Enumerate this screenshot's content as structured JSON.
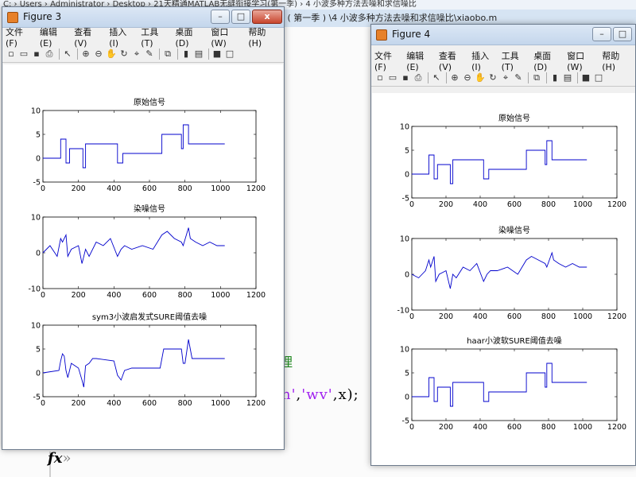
{
  "background": {
    "path_text": "C: › Users › Administrator › Desktop › 21天精通MATLAB无缝衔接学习(第一季) › 4 小波多种方法去噪和求信噪比",
    "editor_title": "手题 ( 第一季 ) \\4 小波多种方法去噪和求信噪比\\xiaobo.m",
    "code_line1": "理",
    "code_line2_a": "n'",
    "code_line2_b": ",",
    "code_line2_c": "'wv'",
    "code_line2_d": ",x);",
    "fx_symbol": "fx",
    "fx_chevron": "»"
  },
  "fig3": {
    "title": "Figure 3",
    "menu": [
      "文件(F)",
      "编辑(E)",
      "查看(V)",
      "插入(I)",
      "工具(T)",
      "桌面(D)",
      "窗口(W)",
      "帮助(H)"
    ]
  },
  "fig4": {
    "title": "Figure 4",
    "menu": [
      "文件(F)",
      "编辑(E)",
      "查看(V)",
      "插入(I)",
      "工具(T)",
      "桌面(D)",
      "窗口(W)",
      "帮助(H)"
    ]
  },
  "window_controls": {
    "minimize": "–",
    "maximize": "□",
    "close": "x"
  },
  "toolbar_icons": [
    "new-file-icon",
    "open-folder-icon",
    "save-icon",
    "print-icon",
    "arrow-cursor-icon",
    "zoom-in-icon",
    "zoom-out-icon",
    "pan-icon",
    "rotate-icon",
    "data-cursor-icon",
    "brush-icon",
    "link-icon",
    "colorbar-icon",
    "legend-icon",
    "hide-plot-tools-icon",
    "show-plot-tools-icon"
  ],
  "chart_data": [
    {
      "figure": "Figure 3",
      "type": "line",
      "title": "原始信号",
      "xlim": [
        0,
        1200
      ],
      "ylim": [
        -5,
        10
      ],
      "xticks": [
        "0",
        "200",
        "400",
        "600",
        "800",
        "1000",
        "1200"
      ],
      "yticks": [
        "10",
        "5",
        "0",
        "-5"
      ],
      "series": [
        {
          "x": [
            0,
            100,
            100,
            130,
            130,
            150,
            150,
            225,
            225,
            240,
            240,
            300,
            300,
            420,
            420,
            450,
            450,
            670,
            670,
            780,
            780,
            790,
            790,
            820,
            820,
            840,
            840,
            1024
          ],
          "y": [
            0,
            0,
            4,
            4,
            -1,
            -1,
            2,
            2,
            -2,
            -2,
            3,
            3,
            3,
            3,
            -1,
            -1,
            1,
            1,
            5,
            5,
            2,
            2,
            7,
            7,
            3,
            3,
            3,
            3
          ]
        }
      ]
    },
    {
      "figure": "Figure 3",
      "type": "line",
      "title": "染噪信号",
      "xlim": [
        0,
        1200
      ],
      "ylim": [
        -10,
        10
      ],
      "xticks": [
        "0",
        "200",
        "400",
        "600",
        "800",
        "1000",
        "1200"
      ],
      "yticks": [
        "10",
        "0",
        "-10"
      ],
      "series": [
        {
          "x": [
            0,
            40,
            80,
            100,
            110,
            130,
            140,
            160,
            200,
            220,
            225,
            240,
            260,
            300,
            340,
            380,
            420,
            440,
            460,
            500,
            560,
            620,
            670,
            700,
            740,
            780,
            790,
            820,
            830,
            860,
            900,
            940,
            980,
            1024
          ],
          "y": [
            0,
            2,
            -1,
            4,
            3,
            5,
            -1,
            1,
            2,
            -3,
            -2,
            1,
            -1,
            3,
            2,
            4,
            -1,
            1,
            2,
            1,
            2,
            1,
            5,
            6,
            4,
            3,
            2,
            7,
            4,
            3,
            2,
            3,
            2,
            2
          ]
        }
      ]
    },
    {
      "figure": "Figure 3",
      "type": "line",
      "title": "sym3小波启发式SURE阈值去噪",
      "xlim": [
        0,
        1200
      ],
      "ylim": [
        -5,
        10
      ],
      "xticks": [
        "0",
        "200",
        "400",
        "600",
        "800",
        "1000",
        "1200"
      ],
      "yticks": [
        "10",
        "5",
        "0",
        "-5"
      ],
      "series": [
        {
          "x": [
            0,
            90,
            100,
            110,
            120,
            130,
            140,
            150,
            160,
            180,
            200,
            220,
            230,
            240,
            260,
            280,
            300,
            400,
            420,
            440,
            460,
            500,
            600,
            660,
            680,
            780,
            790,
            800,
            820,
            840,
            860,
            1024
          ],
          "y": [
            0,
            0.5,
            2.5,
            4,
            3.5,
            0.5,
            -1,
            0.5,
            2,
            1.5,
            1,
            -1.5,
            -3,
            1.5,
            2,
            3,
            3,
            2.5,
            -0.5,
            -1.5,
            0.5,
            1,
            1,
            1,
            5,
            5,
            2,
            2,
            7,
            3,
            3,
            3
          ]
        }
      ]
    },
    {
      "figure": "Figure 4",
      "type": "line",
      "title": "原始信号",
      "xlim": [
        0,
        1200
      ],
      "ylim": [
        -5,
        10
      ],
      "xticks": [
        "0",
        "200",
        "400",
        "600",
        "800",
        "1000",
        "1200"
      ],
      "yticks": [
        "10",
        "5",
        "0",
        "-5"
      ],
      "series": [
        {
          "x": [
            0,
            100,
            100,
            130,
            130,
            150,
            150,
            225,
            225,
            240,
            240,
            300,
            300,
            420,
            420,
            450,
            450,
            670,
            670,
            780,
            780,
            790,
            790,
            820,
            820,
            840,
            840,
            1024
          ],
          "y": [
            0,
            0,
            4,
            4,
            -1,
            -1,
            2,
            2,
            -2,
            -2,
            3,
            3,
            3,
            3,
            -1,
            -1,
            1,
            1,
            5,
            5,
            2,
            2,
            7,
            7,
            3,
            3,
            3,
            3
          ]
        }
      ]
    },
    {
      "figure": "Figure 4",
      "type": "line",
      "title": "染噪信号",
      "xlim": [
        0,
        1200
      ],
      "ylim": [
        -10,
        10
      ],
      "xticks": [
        "0",
        "200",
        "400",
        "600",
        "800",
        "1000",
        "1200"
      ],
      "yticks": [
        "10",
        "0",
        "-10"
      ],
      "series": [
        {
          "x": [
            0,
            40,
            80,
            100,
            110,
            130,
            140,
            160,
            200,
            220,
            225,
            240,
            260,
            300,
            340,
            380,
            420,
            440,
            460,
            500,
            560,
            620,
            670,
            700,
            740,
            780,
            790,
            820,
            830,
            860,
            900,
            940,
            980,
            1024
          ],
          "y": [
            0,
            -1,
            1,
            4,
            2,
            5,
            -2,
            0,
            1,
            -3,
            -4,
            0,
            -1,
            2,
            1,
            3,
            -2,
            0,
            1,
            1,
            2,
            0,
            4,
            5,
            4,
            3,
            2,
            6,
            4,
            3,
            2,
            3,
            2,
            2
          ]
        }
      ]
    },
    {
      "figure": "Figure 4",
      "type": "line",
      "title": "haar小波软SURE阈值去噪",
      "xlim": [
        0,
        1200
      ],
      "ylim": [
        -5,
        10
      ],
      "xticks": [
        "0",
        "200",
        "400",
        "600",
        "800",
        "1000",
        "1200"
      ],
      "yticks": [
        "10",
        "5",
        "0",
        "-5"
      ],
      "series": [
        {
          "x": [
            0,
            100,
            100,
            130,
            130,
            150,
            150,
            225,
            225,
            240,
            240,
            300,
            300,
            420,
            420,
            450,
            450,
            670,
            670,
            780,
            780,
            790,
            790,
            820,
            820,
            840,
            840,
            1024
          ],
          "y": [
            0,
            0,
            4,
            4,
            -1,
            -1,
            2,
            2,
            -2,
            -2,
            3,
            3,
            3,
            3,
            -1,
            -1,
            1,
            1,
            5,
            5,
            2,
            2,
            7,
            7,
            3,
            3,
            3,
            3
          ]
        }
      ]
    }
  ],
  "colors": {
    "line": "#0000cc",
    "axis": "#000000"
  }
}
